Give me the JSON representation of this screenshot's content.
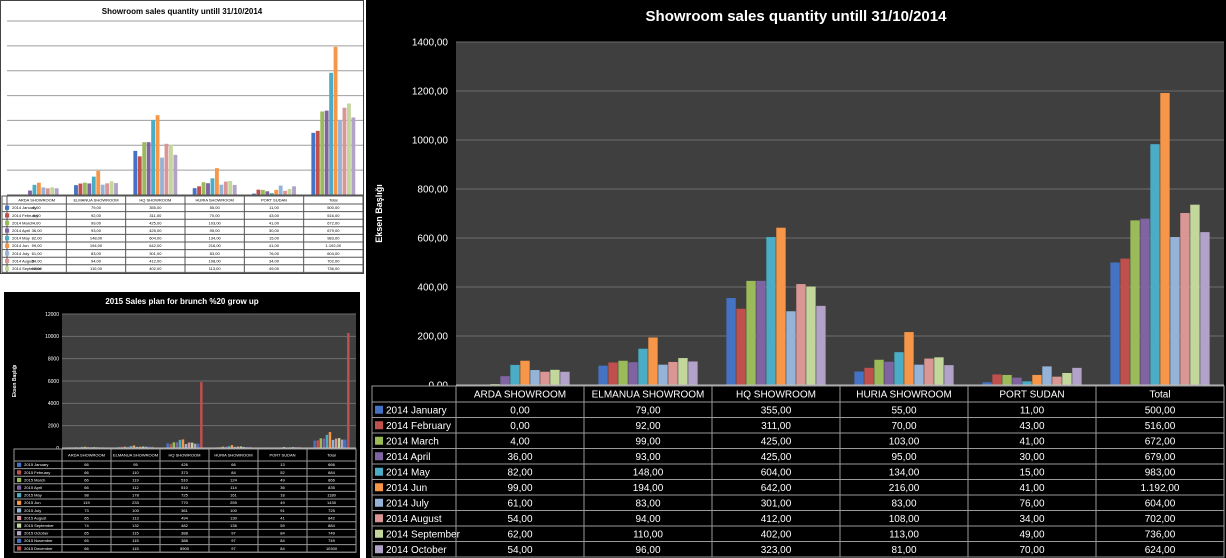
{
  "colors": [
    "#4472c4",
    "#c0504d",
    "#9bbb59",
    "#8064a2",
    "#4bacc6",
    "#f79646",
    "#95b3d7",
    "#d99694",
    "#c3d69b",
    "#b2a2c7"
  ],
  "chart_data": [
    {
      "type": "bar",
      "title": "Showroom sales quantity untill 31/10/2014",
      "xlabel": "",
      "ylabel": "Eksen Başlığı",
      "ylim": [
        0,
        1400
      ],
      "yticks": [
        0,
        200,
        400,
        600,
        800,
        1000,
        1200,
        1400
      ],
      "ytick_labels": [
        "0,00",
        "200,00",
        "400,00",
        "600,00",
        "800,00",
        "1000,00",
        "1200,00",
        "1400,00"
      ],
      "grid": true,
      "categories": [
        "ARDA SHOWROOM",
        "ELMANUA SHOWROOM",
        "HQ SHOWROOM",
        "HURIA SHOWROOM",
        "PORT SUDAN",
        "Total"
      ],
      "series": [
        {
          "name": "2014 January",
          "values": [
            0,
            79,
            355,
            55,
            11,
            500
          ],
          "labels": [
            "0,00",
            "79,00",
            "355,00",
            "55,00",
            "11,00",
            "500,00"
          ]
        },
        {
          "name": "2014 February",
          "values": [
            0,
            92,
            311,
            70,
            43,
            516
          ],
          "labels": [
            "0,00",
            "92,00",
            "311,00",
            "70,00",
            "43,00",
            "516,00"
          ]
        },
        {
          "name": "2014 March",
          "values": [
            4,
            99,
            425,
            103,
            41,
            672
          ],
          "labels": [
            "4,00",
            "99,00",
            "425,00",
            "103,00",
            "41,00",
            "672,00"
          ]
        },
        {
          "name": "2014 April",
          "values": [
            36,
            93,
            425,
            95,
            30,
            679
          ],
          "labels": [
            "36,00",
            "93,00",
            "425,00",
            "95,00",
            "30,00",
            "679,00"
          ]
        },
        {
          "name": "2014 May",
          "values": [
            82,
            148,
            604,
            134,
            15,
            983
          ],
          "labels": [
            "82,00",
            "148,00",
            "604,00",
            "134,00",
            "15,00",
            "983,00"
          ]
        },
        {
          "name": "2014 Jun",
          "values": [
            99,
            194,
            642,
            216,
            41,
            1192
          ],
          "labels": [
            "99,00",
            "194,00",
            "642,00",
            "216,00",
            "41,00",
            "1.192,00"
          ]
        },
        {
          "name": "2014 July",
          "values": [
            61,
            83,
            301,
            83,
            76,
            604
          ],
          "labels": [
            "61,00",
            "83,00",
            "301,00",
            "83,00",
            "76,00",
            "604,00"
          ]
        },
        {
          "name": "2014 August",
          "values": [
            54,
            94,
            412,
            108,
            34,
            702
          ],
          "labels": [
            "54,00",
            "94,00",
            "412,00",
            "108,00",
            "34,00",
            "702,00"
          ]
        },
        {
          "name": "2014 September",
          "values": [
            62,
            110,
            402,
            113,
            49,
            736
          ],
          "labels": [
            "62,00",
            "110,00",
            "402,00",
            "113,00",
            "49,00",
            "736,00"
          ]
        },
        {
          "name": "2014 October",
          "values": [
            54,
            96,
            323,
            81,
            70,
            624
          ],
          "labels": [
            "54,00",
            "96,00",
            "323,00",
            "81,00",
            "70,00",
            "624,00"
          ]
        }
      ]
    },
    {
      "type": "bar",
      "title": "Showroom sales quantity untill 31/10/2014",
      "xlabel": "",
      "ylabel": "",
      "ylim": [
        0,
        1400
      ],
      "grid": true,
      "categories": [
        "ARDA SHOWROOM",
        "ELMANUA SHOWROOM",
        "HQ SHOWROOM",
        "HURIA SHOWROOM",
        "PORT SUDAN",
        "Total"
      ],
      "series_ref": "same values as the main chart (thumbnail copy)"
    },
    {
      "type": "bar",
      "title": "2015 Sales plan for brunch  %20 grow up",
      "xlabel": "",
      "ylabel": "Eksen Başlığı",
      "ylim": [
        0,
        12000
      ],
      "yticks": [
        0,
        2000,
        4000,
        6000,
        8000,
        10000,
        12000
      ],
      "ytick_labels": [
        "0",
        "2000",
        "4000",
        "6000",
        "8000",
        "10000",
        "12000"
      ],
      "grid": true,
      "categories": [
        "ARDA SHOWROOM",
        "ELMANUA SHOWROOM",
        "HQ SHOWROOM",
        "HURIA SHOWROOM",
        "PORT SUDAN",
        "Total"
      ],
      "series": [
        {
          "name": "2015 January",
          "values": [
            66,
            95,
            426,
            66,
            13,
            666
          ]
        },
        {
          "name": "2015 February",
          "values": [
            66,
            110,
            373,
            84,
            52,
            684
          ]
        },
        {
          "name": "2015 March",
          "values": [
            66,
            119,
            510,
            124,
            49,
            866
          ]
        },
        {
          "name": "2015 April",
          "values": [
            66,
            112,
            510,
            114,
            36,
            835
          ]
        },
        {
          "name": "2015 May",
          "values": [
            98,
            178,
            725,
            161,
            18,
            1180
          ]
        },
        {
          "name": "2015 Jun",
          "values": [
            119,
            233,
            770,
            259,
            49,
            1430
          ]
        },
        {
          "name": "2015 July",
          "values": [
            73,
            100,
            361,
            100,
            91,
            725
          ]
        },
        {
          "name": "2015 August",
          "values": [
            65,
            113,
            494,
            130,
            41,
            842
          ]
        },
        {
          "name": "2015 September",
          "values": [
            74,
            132,
            482,
            136,
            59,
            884
          ]
        },
        {
          "name": "2015 October",
          "values": [
            65,
            115,
            388,
            97,
            84,
            749
          ]
        },
        {
          "name": "2015 November",
          "values": [
            65,
            115,
            388,
            97,
            84,
            749
          ]
        },
        {
          "name": "2015 December",
          "values": [
            66,
            115,
            5900,
            97,
            84,
            10300
          ]
        }
      ]
    }
  ]
}
